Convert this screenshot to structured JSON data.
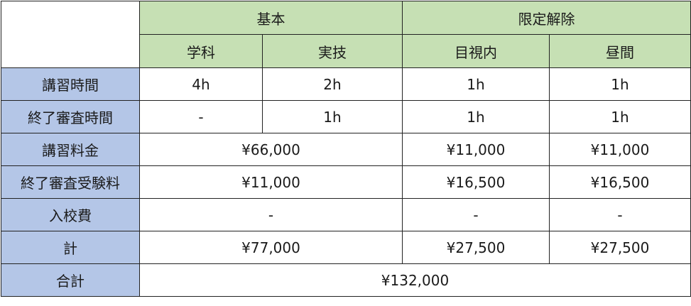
{
  "colors": {
    "header_green": "#c6e0b4",
    "row_label_blue": "#b4c6e7"
  },
  "header": {
    "groups": [
      "基本",
      "限定解除"
    ],
    "columns": [
      "学科",
      "実技",
      "目視内",
      "昼間"
    ]
  },
  "rows": [
    {
      "label": "講習時間",
      "cells": [
        "4h",
        "2h",
        "1h",
        "1h"
      ]
    },
    {
      "label": "終了審査時間",
      "cells": [
        "-",
        "1h",
        "1h",
        "1h"
      ]
    },
    {
      "label": "講習料金",
      "cells": [
        "¥66,000",
        "¥11,000",
        "¥11,000"
      ]
    },
    {
      "label": "終了審査受験料",
      "cells": [
        "¥11,000",
        "¥16,500",
        "¥16,500"
      ]
    },
    {
      "label": "入校費",
      "cells": [
        "-",
        "-",
        "-"
      ]
    },
    {
      "label": "計",
      "cells": [
        "¥77,000",
        "¥27,500",
        "¥27,500"
      ]
    },
    {
      "label": "合計",
      "cells": [
        "¥132,000"
      ]
    }
  ]
}
